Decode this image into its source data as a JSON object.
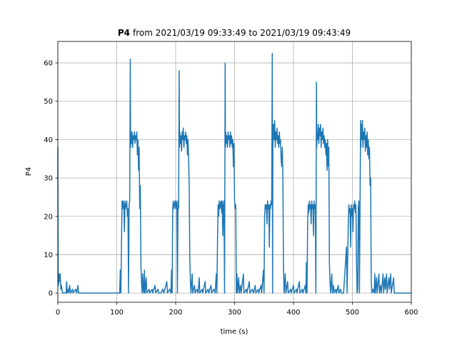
{
  "chart_data": {
    "type": "line",
    "title_prefix": "P4",
    "title": "from 2021/03/19 09:33:49 to 2021/03/19 09:43:49",
    "xlabel": "time (s)",
    "ylabel": "P4",
    "xlim": [
      0,
      600
    ],
    "xticks": [
      0,
      100,
      200,
      300,
      400,
      500,
      600
    ],
    "ylim": [
      -2.4,
      65.6
    ],
    "yticks": [
      0,
      10,
      20,
      30,
      40,
      50,
      60
    ],
    "grid": true,
    "x": [
      0,
      0.5,
      1,
      2,
      3,
      4,
      5,
      6,
      8,
      10,
      14,
      15,
      16,
      18,
      19,
      20,
      22,
      25,
      26,
      30,
      32,
      34,
      35,
      100,
      105,
      106,
      107,
      108,
      109,
      110,
      111,
      112,
      113,
      114,
      115,
      116,
      117,
      118,
      119,
      120,
      121,
      122,
      123,
      123.5,
      124,
      125,
      126,
      127,
      128,
      129,
      130,
      131,
      132,
      133,
      134,
      135,
      136,
      137,
      138,
      139,
      140,
      141,
      142,
      143,
      144,
      145,
      146,
      147,
      148,
      150,
      151,
      155,
      156,
      160,
      161,
      165,
      166,
      170,
      171,
      175,
      178,
      180,
      185,
      186,
      190,
      192,
      193,
      194,
      195,
      196,
      197,
      198,
      199,
      200,
      201,
      202,
      203,
      204,
      205,
      206,
      206.5,
      207,
      208,
      209,
      210,
      211,
      212,
      213,
      214,
      215,
      216,
      217,
      218,
      219,
      220,
      221,
      222,
      223,
      224,
      225,
      226,
      228,
      229,
      232,
      233,
      236,
      238,
      240,
      241,
      245,
      246,
      250,
      251,
      255,
      256,
      260,
      261,
      265,
      267,
      269,
      270,
      271,
      272,
      273,
      274,
      275,
      276,
      277,
      278,
      279,
      280,
      281,
      282,
      283,
      284,
      284.5,
      285,
      286,
      287,
      288,
      289,
      290,
      291,
      292,
      293,
      294,
      295,
      296,
      297,
      298,
      299,
      300,
      301,
      302,
      303,
      304,
      305,
      307,
      308,
      310,
      311,
      315,
      316,
      320,
      321,
      325,
      326,
      330,
      332,
      335,
      336,
      340,
      341,
      345,
      346,
      349,
      350,
      351,
      352,
      353,
      354,
      355,
      356,
      357,
      358,
      359,
      360,
      361,
      362,
      363,
      364,
      364.5,
      365,
      366,
      367,
      368,
      369,
      370,
      371,
      372,
      373,
      374,
      375,
      376,
      377,
      378,
      379,
      380,
      381,
      382,
      383,
      384,
      386,
      387,
      390,
      391,
      395,
      396,
      400,
      401,
      405,
      406,
      410,
      411,
      415,
      416,
      420,
      421,
      422,
      423,
      424,
      425,
      426,
      427,
      428,
      429,
      430,
      431,
      432,
      433,
      434,
      435,
      436,
      437,
      438,
      439,
      439.5,
      440,
      441,
      442,
      443,
      444,
      445,
      446,
      447,
      448,
      449,
      450,
      451,
      452,
      453,
      454,
      455,
      456,
      457,
      458,
      459,
      460,
      461,
      462,
      463,
      465,
      466,
      468,
      469,
      472,
      473,
      476,
      477,
      480,
      481,
      485,
      490,
      491,
      493,
      494,
      495,
      496,
      497,
      498,
      499,
      500,
      501,
      502,
      503,
      504,
      505,
      506,
      507,
      508,
      509,
      510,
      511,
      512,
      513,
      514,
      514.5,
      515,
      516,
      517,
      518,
      519,
      520,
      521,
      522,
      523,
      524,
      525,
      526,
      527,
      528,
      529,
      530,
      531,
      532,
      533,
      535,
      537,
      538,
      539,
      541,
      542,
      545,
      546,
      548,
      549,
      552,
      553,
      555,
      556,
      558,
      559,
      562,
      563,
      565,
      566,
      570,
      571,
      575,
      600
    ],
    "series": [
      {
        "color": "#1f77b4",
        "values": [
          38,
          5,
          2,
          5,
          3,
          5,
          1,
          2,
          0,
          0,
          0,
          3,
          0,
          1,
          0,
          2,
          0,
          1,
          0,
          1,
          0,
          2,
          0,
          0,
          0,
          6,
          0,
          12,
          24,
          22,
          24,
          23,
          16,
          24,
          22,
          23,
          24,
          20,
          22,
          0,
          23,
          24,
          61,
          38,
          42,
          39,
          42,
          38,
          41,
          40,
          42,
          39,
          41,
          40,
          42,
          36,
          40,
          32,
          38,
          22,
          28,
          8,
          3,
          0,
          5,
          1,
          0,
          6,
          0,
          4,
          0,
          1,
          0,
          1,
          0,
          2,
          0,
          1,
          0,
          0,
          1,
          0,
          3,
          0,
          1,
          0,
          6,
          0,
          22,
          24,
          22,
          23,
          24,
          22,
          24,
          23,
          0,
          24,
          22,
          58,
          38,
          42,
          39,
          41,
          37,
          42,
          40,
          43,
          38,
          41,
          40,
          42,
          39,
          41,
          36,
          40,
          35,
          28,
          9,
          3,
          0,
          5,
          0,
          2,
          0,
          1,
          0,
          4,
          0,
          1,
          0,
          3,
          0,
          1,
          0,
          2,
          0,
          1,
          0,
          5,
          0,
          13,
          23,
          20,
          24,
          22,
          23,
          24,
          21,
          24,
          15,
          23,
          24,
          0,
          60,
          38,
          42,
          39,
          41,
          38,
          42,
          40,
          41,
          38,
          42,
          39,
          41,
          38,
          40,
          33,
          39,
          24,
          22,
          23,
          0,
          5,
          0,
          4,
          0,
          2,
          0,
          5,
          0,
          1,
          0,
          3,
          0,
          1,
          0,
          2,
          0,
          1,
          0,
          2,
          0,
          6,
          0,
          20,
          23,
          22,
          23,
          18,
          24,
          22,
          23,
          12,
          23,
          22,
          24,
          23,
          62.5,
          0,
          38,
          44,
          40,
          45,
          38,
          42,
          40,
          43,
          39,
          41,
          38,
          42,
          39,
          40,
          35,
          33,
          38,
          30,
          8,
          0,
          5,
          0,
          3,
          0,
          1,
          0,
          2,
          0,
          1,
          0,
          3,
          0,
          1,
          0,
          2,
          0,
          8,
          0,
          18,
          23,
          21,
          24,
          22,
          23,
          18,
          24,
          22,
          23,
          15,
          24,
          22,
          23,
          0,
          55,
          38,
          42,
          40,
          44,
          39,
          43,
          41,
          44,
          38,
          42,
          40,
          43,
          39,
          41,
          38,
          40,
          36,
          39,
          32,
          40,
          33,
          38,
          8,
          3,
          0,
          5,
          0,
          2,
          0,
          1,
          0,
          2,
          0,
          1,
          0,
          0,
          12,
          0,
          18,
          23,
          21,
          22,
          12,
          23,
          20,
          22,
          16,
          23,
          22,
          24,
          21,
          23,
          8,
          0,
          1,
          22,
          24,
          0,
          23,
          45,
          38,
          44,
          40,
          45,
          38,
          42,
          40,
          43,
          37,
          41,
          38,
          42,
          36,
          40,
          35,
          38,
          28,
          30,
          3,
          0,
          1,
          0,
          5,
          0,
          4,
          0,
          5,
          0,
          2,
          0,
          5,
          0,
          4,
          1,
          5,
          0,
          4,
          1,
          5,
          0,
          4,
          0,
          0,
          0
        ]
      }
    ]
  }
}
